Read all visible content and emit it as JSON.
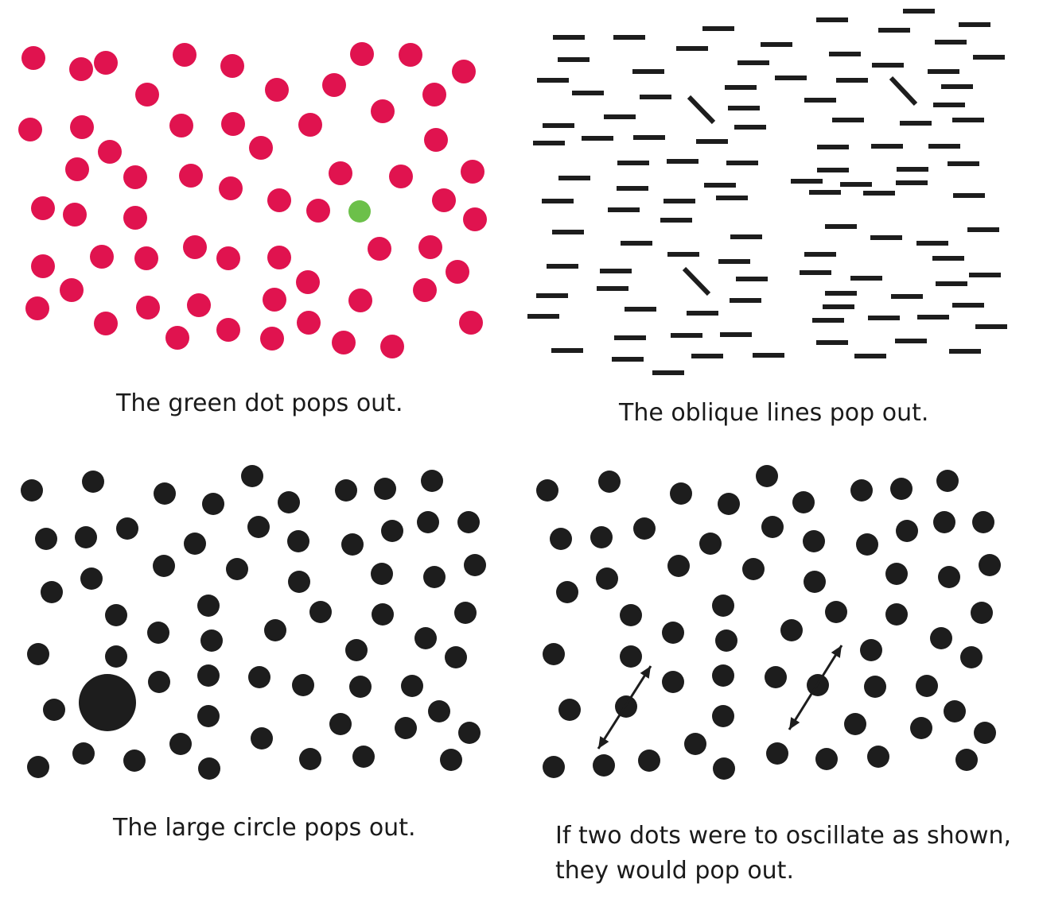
{
  "colors": {
    "dot_red": "#e0134f",
    "dot_green": "#6cc04a",
    "ink": "#1d1d1d",
    "background": "#ffffff"
  },
  "panels": [
    {
      "name": "color-popout",
      "caption": "The green dot pops out.",
      "target": "green dot",
      "distractor": "red dots"
    },
    {
      "name": "orientation-popout",
      "caption": "The oblique lines pop out.",
      "target": "oblique lines",
      "distractor": "horizontal lines"
    },
    {
      "name": "size-popout",
      "caption": "The large circle pops out.",
      "target": "large circle",
      "distractor": "small circles"
    },
    {
      "name": "motion-popout",
      "caption_lines": [
        "If two dots were to oscillate as shown,",
        "they would pop out."
      ],
      "target": "two oscillating dots",
      "arrow_icon": "double-headed-arrow-icon"
    }
  ]
}
